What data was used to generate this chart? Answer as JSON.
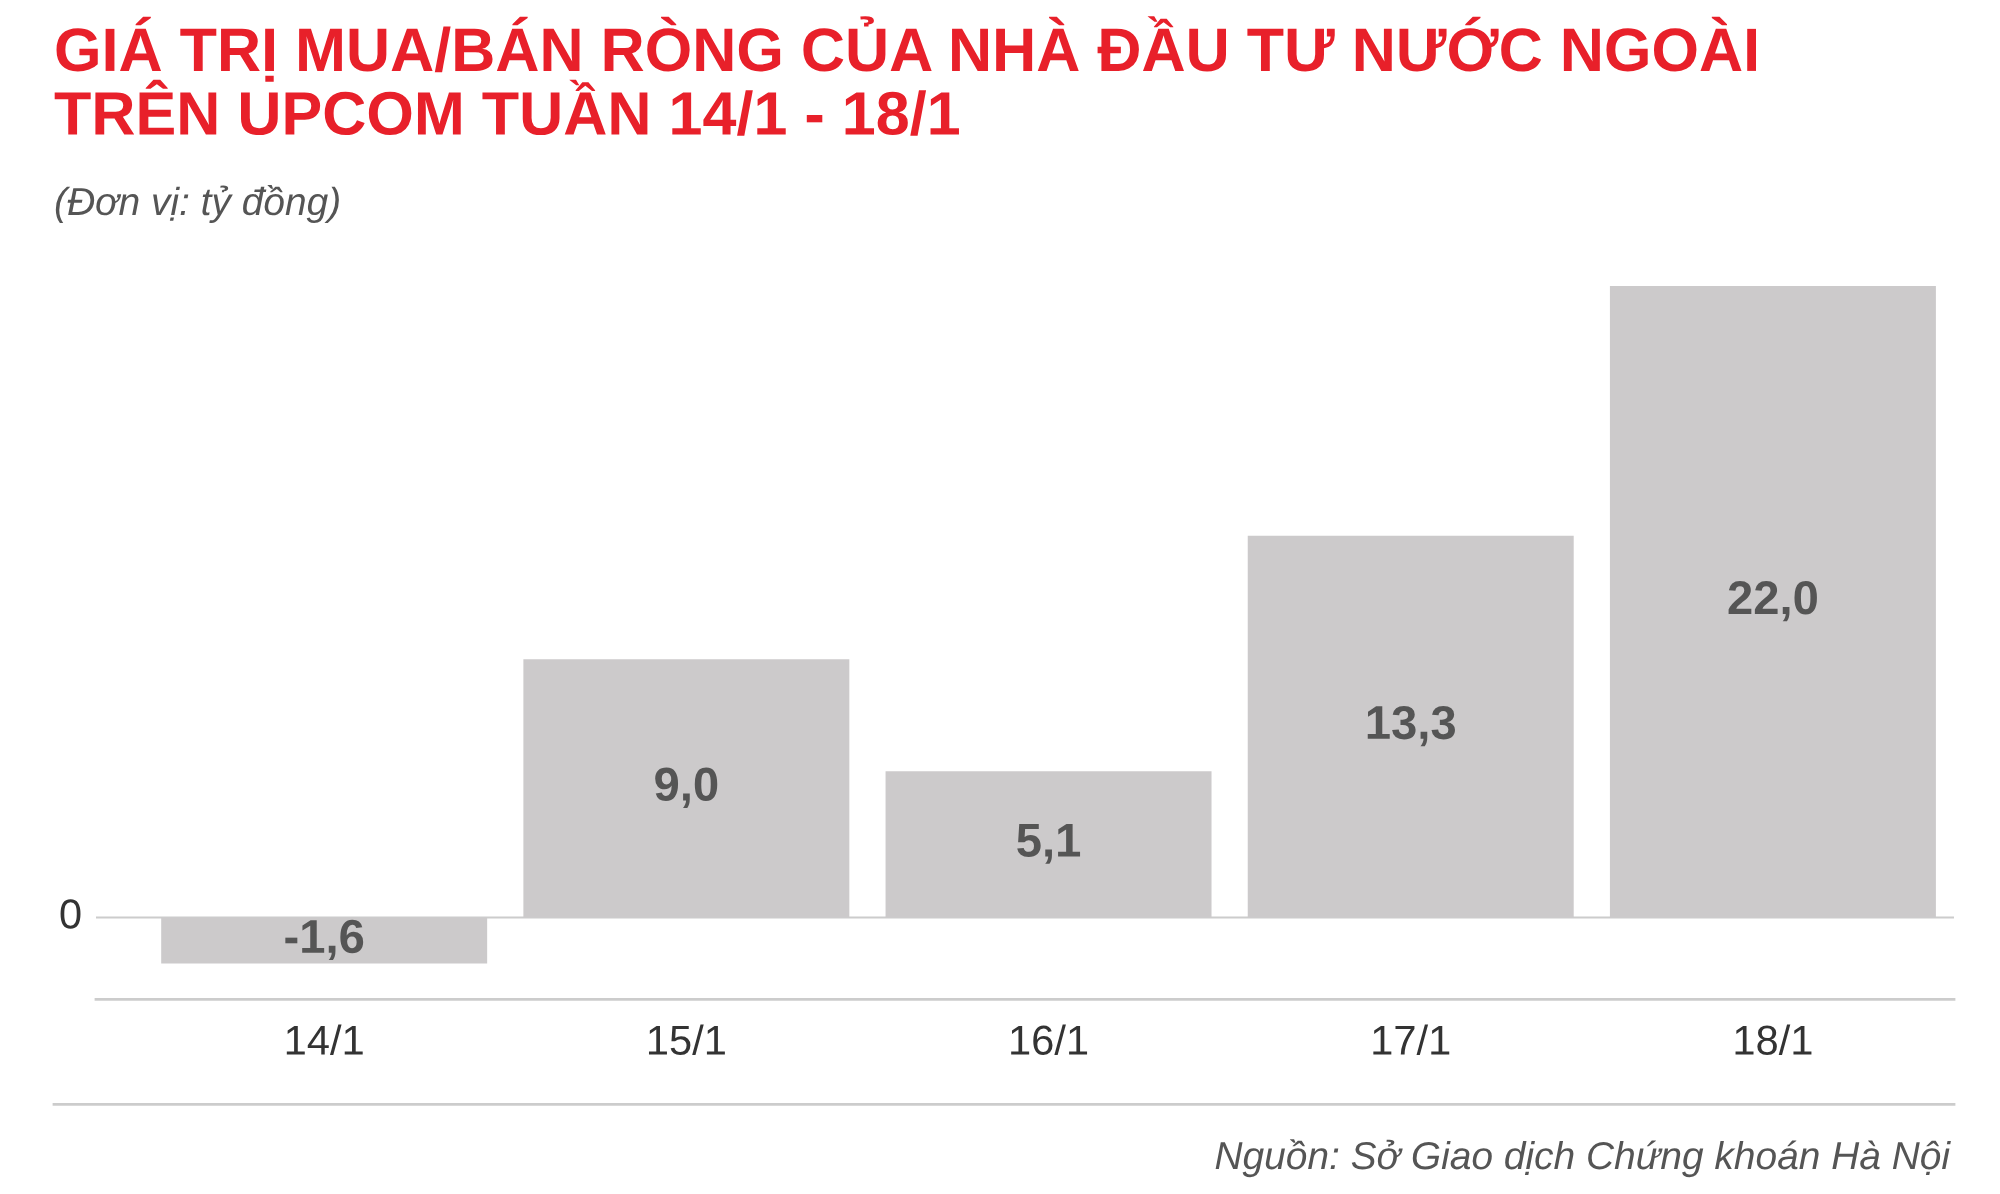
{
  "chart_data": {
    "type": "bar",
    "title": "GIÁ TRỊ MUA/BÁN RÒNG CỦA NHÀ ĐẦU TƯ NƯỚC NGOÀI\nTRÊN UPCOM TUẦN 14/1 - 18/1",
    "subtitle": "(Đơn vị: tỷ đồng)",
    "categories": [
      "14/1",
      "15/1",
      "16/1",
      "17/1",
      "18/1"
    ],
    "values": [
      -1.6,
      9.0,
      5.1,
      13.3,
      22.0
    ],
    "value_labels": [
      "-1,6",
      "9,0",
      "5,1",
      "13,3",
      "22,0"
    ],
    "color": "#cccacb",
    "ref_lines": [
      {
        "axis": "y",
        "value": 0,
        "label": "0",
        "color": "#cccccc"
      }
    ],
    "legend": false,
    "annotations": [
      "Nguồn: Sở Giao dịch Chứng khoán Hà Nội"
    ]
  }
}
